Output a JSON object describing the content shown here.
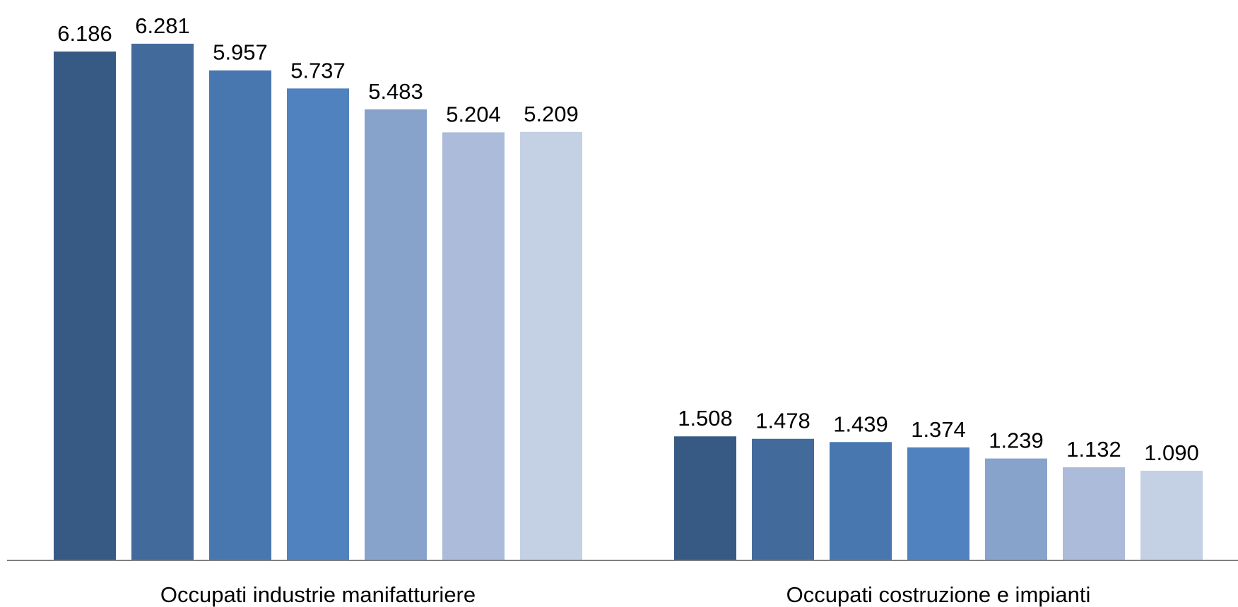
{
  "chart_data": {
    "type": "bar",
    "categories": [
      "Occupati industrie manifatturiere",
      "Occupati costruzione e impianti"
    ],
    "series": [
      {
        "values": [
          6186,
          1508
        ],
        "labels": [
          "6.186",
          "1.508"
        ],
        "color": "#375A85"
      },
      {
        "values": [
          6281,
          1478
        ],
        "labels": [
          "6.281",
          "1.478"
        ],
        "color": "#426B9C"
      },
      {
        "values": [
          5957,
          1439
        ],
        "labels": [
          "5.957",
          "1.439"
        ],
        "color": "#4877AF"
      },
      {
        "values": [
          5737,
          1374
        ],
        "labels": [
          "5.737",
          "1.374"
        ],
        "color": "#5082BF"
      },
      {
        "values": [
          5483,
          1239
        ],
        "labels": [
          "5.483",
          "1.239"
        ],
        "color": "#88A3CB"
      },
      {
        "values": [
          5204,
          1132
        ],
        "labels": [
          "5.204",
          "1.132"
        ],
        "color": "#ABBBD9"
      },
      {
        "values": [
          5209,
          1090
        ],
        "labels": [
          "5.209",
          "1.090"
        ],
        "color": "#C4D0E3"
      }
    ],
    "title": "",
    "xlabel": "",
    "ylabel": "",
    "ylim": [
      0,
      7000
    ],
    "grid": false,
    "legend": "none",
    "axis_color": "#7F7F7F"
  }
}
